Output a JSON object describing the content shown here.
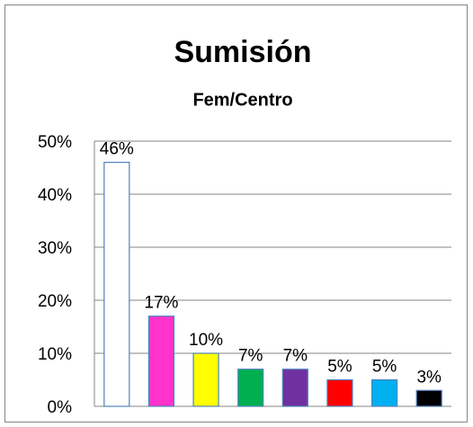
{
  "chart_data": {
    "type": "bar",
    "title": "Sumisión",
    "subtitle": "Fem/Centro",
    "categories": [
      null,
      null,
      null,
      null,
      null,
      null,
      null,
      null
    ],
    "values": [
      46,
      17,
      10,
      7,
      7,
      5,
      5,
      3
    ],
    "value_labels": [
      "46%",
      "17%",
      "10%",
      "7%",
      "7%",
      "5%",
      "5%",
      "3%"
    ],
    "colors": [
      "#ffffff",
      "#ff33cc",
      "#ffff00",
      "#00b050",
      "#7030a0",
      "#ff0000",
      "#00b0f0",
      "#000000"
    ],
    "ylim": [
      0,
      50
    ],
    "yticks": [
      {
        "value": 0,
        "label": "0%"
      },
      {
        "value": 10,
        "label": "10%"
      },
      {
        "value": 20,
        "label": "20%"
      },
      {
        "value": 30,
        "label": "30%"
      },
      {
        "value": 40,
        "label": "40%"
      },
      {
        "value": 50,
        "label": "50%"
      }
    ],
    "grid": true
  }
}
